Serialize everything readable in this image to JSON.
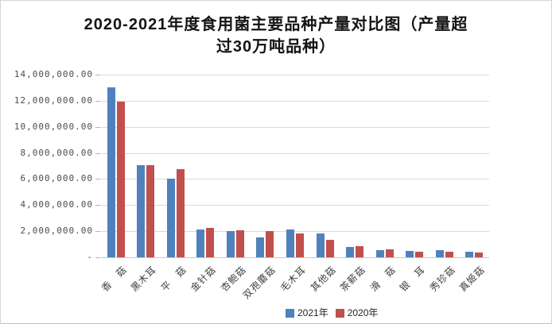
{
  "title": {
    "line1": "2020-2021年度食用菌主要品种产量对比图（产量超",
    "line2": "过30万吨品种）"
  },
  "chart_data": {
    "type": "bar",
    "categories": [
      "香　菇",
      "黑木耳",
      "平　菇",
      "金针菇",
      "杏鲍菇",
      "双孢蘑菇",
      "毛木耳",
      "其他菇",
      "茶薪菇",
      "滑　菇",
      "银　耳",
      "秀珍菇",
      "真姬菇"
    ],
    "series": [
      {
        "name": "2021年",
        "color": "#4F81BD",
        "values": [
          13000000,
          7070000,
          6020000,
          2130000,
          2030000,
          1520000,
          2160000,
          1800000,
          820000,
          560000,
          470000,
          570000,
          450000
        ]
      },
      {
        "name": "2020年",
        "color": "#C0504D",
        "values": [
          11900000,
          7080000,
          6730000,
          2270000,
          2090000,
          1980000,
          1800000,
          1320000,
          840000,
          580000,
          450000,
          410000,
          360000
        ]
      }
    ],
    "ylim": [
      0,
      14000000
    ],
    "y_tick_step": 2000000,
    "y_tick_labels": [
      "14,000,000.00",
      "12,000,000.00",
      "10,000,000.00",
      "8,000,000.00",
      "6,000,000.00",
      "4,000,000.00",
      "2,000,000.00",
      "-"
    ],
    "grid": "horizontal",
    "legend_position": "bottom"
  },
  "colors": {
    "grid": "#D9D9D9",
    "axis": "#C9C9C9",
    "tick_mark": "#B3B3B3",
    "y_label_text": "#4D4D4D",
    "x_label_text": "#3F3F3F",
    "legend_text": "#262626",
    "title_text": "#141414",
    "border": "#D6D6D6",
    "background": "#FFFFFF"
  }
}
